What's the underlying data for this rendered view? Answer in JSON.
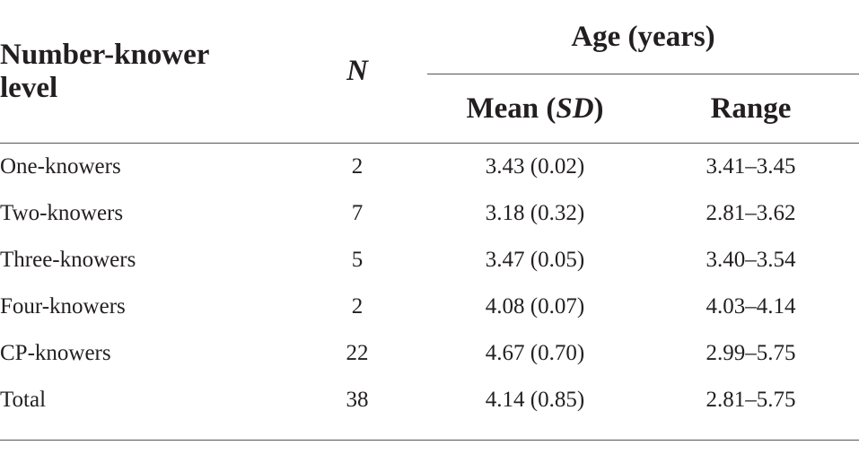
{
  "header": {
    "level_label_line1": "Number-knower",
    "level_label_line2": "level",
    "n_label": "N",
    "age_group_label": "Age (years)",
    "mean_label": "Mean (",
    "sd_label": "SD",
    "mean_close": ")",
    "range_label": "Range"
  },
  "rows": [
    {
      "level": "One-knowers",
      "n": "2",
      "mean": "3.43 (0.02)",
      "range": "3.41–3.45"
    },
    {
      "level": "Two-knowers",
      "n": "7",
      "mean": "3.18 (0.32)",
      "range": "2.81–3.62"
    },
    {
      "level": "Three-knowers",
      "n": "5",
      "mean": "3.47 (0.05)",
      "range": "3.40–3.54"
    },
    {
      "level": "Four-knowers",
      "n": "2",
      "mean": "4.08 (0.07)",
      "range": "4.03–4.14"
    },
    {
      "level": "CP-knowers",
      "n": "22",
      "mean": "4.67 (0.70)",
      "range": "2.99–5.75"
    },
    {
      "level": "Total",
      "n": "38",
      "mean": "4.14 (0.85)",
      "range": "2.81–5.75"
    }
  ]
}
